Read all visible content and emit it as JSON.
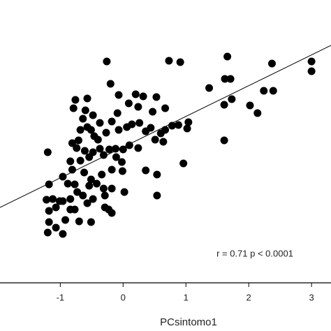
{
  "chart_data": {
    "type": "scatter",
    "xlabel": "PCsintomo1",
    "annotation": "r = 0.71 p < 0.0001",
    "color": "#000000",
    "x": [
      -0.26,
      0.73,
      0.91,
      1.66,
      2.37,
      3.0,
      3.0,
      2.39,
      2.24,
      1.71,
      1.62,
      1.37,
      1.73,
      1.61,
      2.02,
      2.14,
      1.61,
      0.96,
      0.54,
      0.36,
      0.54,
      0.02,
      -0.2,
      -0.07,
      0.2,
      0.32,
      0.53,
      0.67,
      0.47,
      0.24,
      0.09,
      -0.09,
      -0.76,
      -0.57,
      -0.79,
      -0.6,
      -0.48,
      -0.64,
      -0.57,
      -0.51,
      -0.68,
      -0.37,
      -0.27,
      -0.18,
      -0.07,
      0.06,
      0.14,
      0.26,
      0.36,
      0.44,
      0.6,
      0.67,
      0.78,
      0.88,
      1.02,
      1.04,
      0.64,
      0.51,
      0.24,
      0.1,
      0.0,
      -0.12,
      -0.22,
      -0.37,
      -0.48,
      -0.61,
      -0.74,
      -0.81,
      -0.71,
      -1.2,
      -0.84,
      -0.68,
      -0.54,
      -0.31,
      -0.11,
      -0.02,
      -0.18,
      -0.34,
      -0.51,
      -0.62,
      -0.81,
      -0.96,
      -0.88,
      -0.77,
      -1.18,
      -0.54,
      -0.42,
      -0.31,
      -0.18,
      -0.29,
      -0.48,
      -0.57,
      -0.29,
      -0.18,
      -0.51,
      -0.7,
      -0.84,
      -0.96,
      -1.01,
      -1.12,
      -1.22,
      -1.07,
      -1.18,
      -1.18,
      -1.2,
      -1.07,
      -0.92,
      -0.96,
      -0.77,
      -0.01,
      -0.64,
      -0.84,
      -0.73,
      -0.23,
      -0.46,
      -0.4
    ],
    "y": [
      3.17,
      3.18,
      3.16,
      3.24,
      3.14,
      3.03,
      3.17,
      2.75,
      2.75,
      2.92,
      2.92,
      2.79,
      2.63,
      2.55,
      2.54,
      2.43,
      2.04,
      1.71,
      1.55,
      1.61,
      1.25,
      1.3,
      2.85,
      2.69,
      2.7,
      2.67,
      2.66,
      2.5,
      2.45,
      2.52,
      2.57,
      2.43,
      2.62,
      2.64,
      2.5,
      2.47,
      2.4,
      2.35,
      2.23,
      2.19,
      2.19,
      2.29,
      2.15,
      2.31,
      2.19,
      2.23,
      2.27,
      2.29,
      2.17,
      2.22,
      2.14,
      2.19,
      2.25,
      2.26,
      2.21,
      2.3,
      2.02,
      2.05,
      1.93,
      1.97,
      1.91,
      1.92,
      1.91,
      1.92,
      1.87,
      1.89,
      1.93,
      2.0,
      2.04,
      1.87,
      1.74,
      1.75,
      1.8,
      1.83,
      1.8,
      1.73,
      1.62,
      1.55,
      1.48,
      1.58,
      1.62,
      1.52,
      1.42,
      1.41,
      1.41,
      1.39,
      1.42,
      1.35,
      1.35,
      1.25,
      1.2,
      1.14,
      1.08,
      1.0,
      0.87,
      0.88,
      1.05,
      1.17,
      1.17,
      1.2,
      1.19,
      1.08,
      1.03,
      0.87,
      0.72,
      0.79,
      0.9,
      0.7,
      1.05,
      1.6,
      1.25,
      1.2,
      1.3,
      1.05,
      2.1,
      2.05
    ],
    "trend_line": {
      "x": [
        -1.96,
        3.31
      ],
      "y": [
        1.08,
        3.4
      ]
    },
    "xlim": [
      -1.96,
      3.31
    ],
    "ylim": [
      0,
      3.85
    ],
    "xticks": [
      -1,
      0,
      1,
      2,
      3
    ]
  }
}
